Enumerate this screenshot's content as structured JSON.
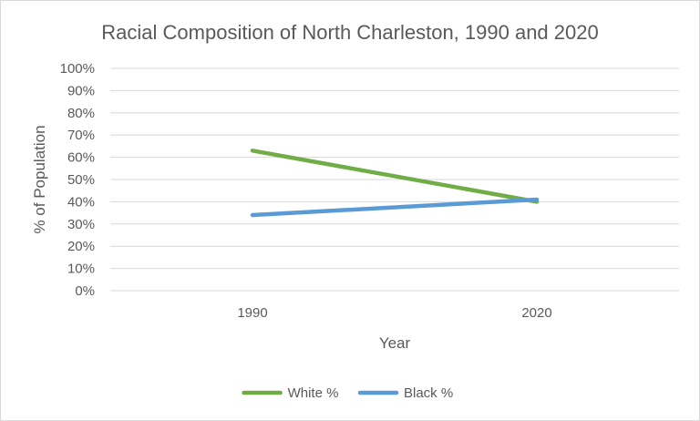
{
  "chart_data": {
    "type": "line",
    "title": "Racial Composition of North Charleston, 1990 and 2020",
    "xlabel": "Year",
    "ylabel": "% of Population",
    "categories": [
      "1990",
      "2020"
    ],
    "series": [
      {
        "name": "White %",
        "values": [
          63,
          40
        ],
        "color": "#70ad47"
      },
      {
        "name": "Black %",
        "values": [
          34,
          41
        ],
        "color": "#5b9bd5"
      }
    ],
    "ylim": [
      0,
      100
    ],
    "y_ticks": [
      "0%",
      "10%",
      "20%",
      "30%",
      "40%",
      "50%",
      "60%",
      "70%",
      "80%",
      "90%",
      "100%"
    ],
    "grid": true,
    "legend_position": "bottom"
  }
}
